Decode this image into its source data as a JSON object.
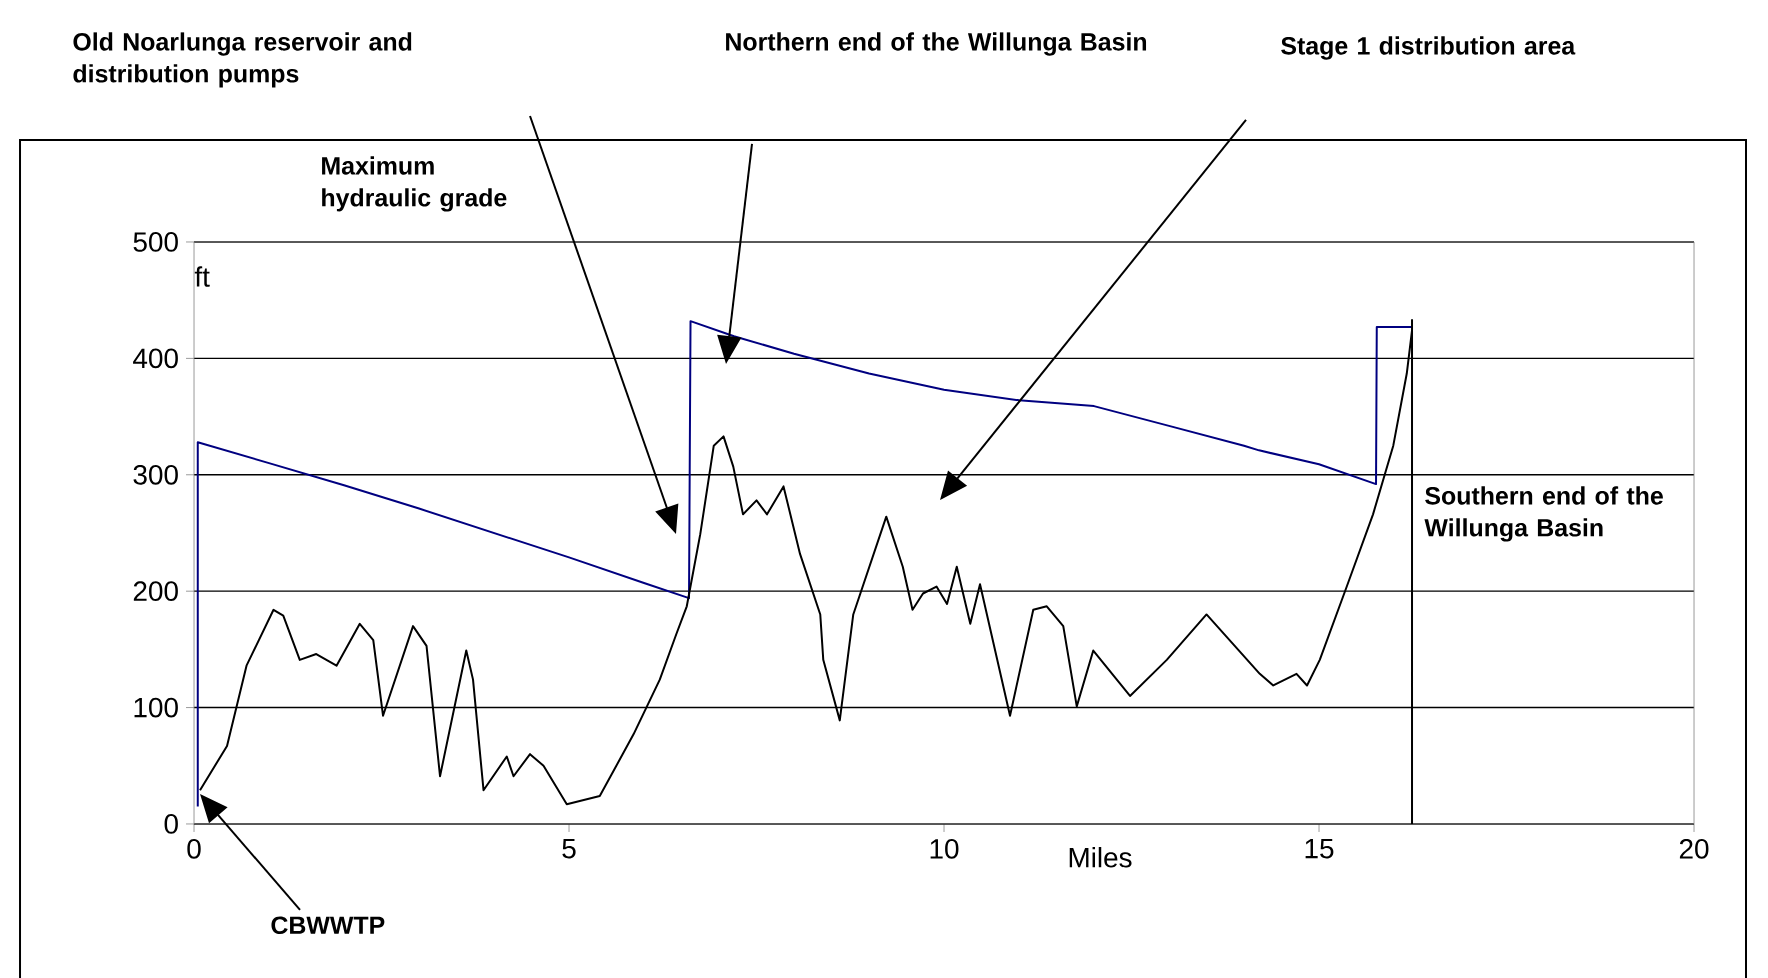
{
  "chart_data": {
    "type": "line",
    "xlabel": "Miles",
    "ylabel": "ft",
    "xlim": [
      0,
      20
    ],
    "xticks": [
      0,
      5,
      10,
      15,
      20
    ],
    "ylim": [
      0,
      500
    ],
    "yticks": [
      0,
      100,
      200,
      300,
      400,
      500
    ],
    "grid": "y",
    "marker": "none",
    "line_style": "solid",
    "series": [
      {
        "color": "#000080",
        "x": [
          0.05,
          0.05,
          1,
          2,
          3,
          4,
          5,
          6,
          6.6,
          6.62,
          7.2,
          8,
          9,
          10,
          11,
          12,
          13,
          14,
          14.2,
          15,
          15.76,
          15.77,
          16.24
        ],
        "values": [
          15,
          328,
          310,
          291,
          271,
          250,
          229,
          207,
          194,
          432,
          419,
          404,
          387,
          373,
          364,
          359,
          342,
          325,
          321,
          309,
          292,
          427,
          427
        ]
      },
      {
        "color": "#000000",
        "x": [
          0.08,
          0.44,
          0.7,
          1.06,
          1.19,
          1.41,
          1.63,
          1.9,
          2.21,
          2.39,
          2.52,
          2.92,
          3.1,
          3.28,
          3.63,
          3.72,
          3.86,
          4.17,
          4.26,
          4.48,
          4.66,
          4.97,
          5.41,
          5.86,
          6.21,
          6.43,
          6.57,
          6.75,
          6.93,
          7.06,
          7.19,
          7.32,
          7.5,
          7.64,
          7.86,
          8.08,
          8.35,
          8.39,
          8.61,
          8.79,
          9.23,
          9.45,
          9.58,
          9.72,
          9.9,
          10.04,
          10.17,
          10.35,
          10.48,
          10.88,
          11.19,
          11.37,
          11.59,
          11.77,
          11.99,
          12.48,
          12.97,
          13.5,
          14.21,
          14.39,
          14.7,
          14.84,
          15.01,
          15.37,
          15.72,
          15.99,
          16.17,
          16.24,
          16.24,
          16.24
        ],
        "values": [
          29,
          67,
          136,
          184,
          179,
          141,
          146,
          136,
          172,
          158,
          93,
          170,
          153,
          41,
          149,
          124,
          29,
          58,
          41,
          60,
          50,
          17,
          24,
          77,
          124,
          163,
          187,
          249,
          325,
          333,
          307,
          266,
          278,
          266,
          290,
          232,
          180,
          141,
          89,
          180,
          264,
          221,
          184,
          198,
          204,
          189,
          221,
          172,
          206,
          93,
          184,
          187,
          170,
          101,
          149,
          110,
          141,
          180,
          129,
          119,
          129,
          119,
          141,
          204,
          266,
          325,
          387,
          424,
          433,
          0
        ]
      }
    ],
    "annotations": [
      "Old Noarlunga reservoir and distribution pumps",
      "Northern end of the Willunga Basin",
      "Stage 1 distribution area",
      "Maximum hydraulic grade",
      "Southern end of the Willunga Basin",
      "CBWWTP"
    ]
  }
}
